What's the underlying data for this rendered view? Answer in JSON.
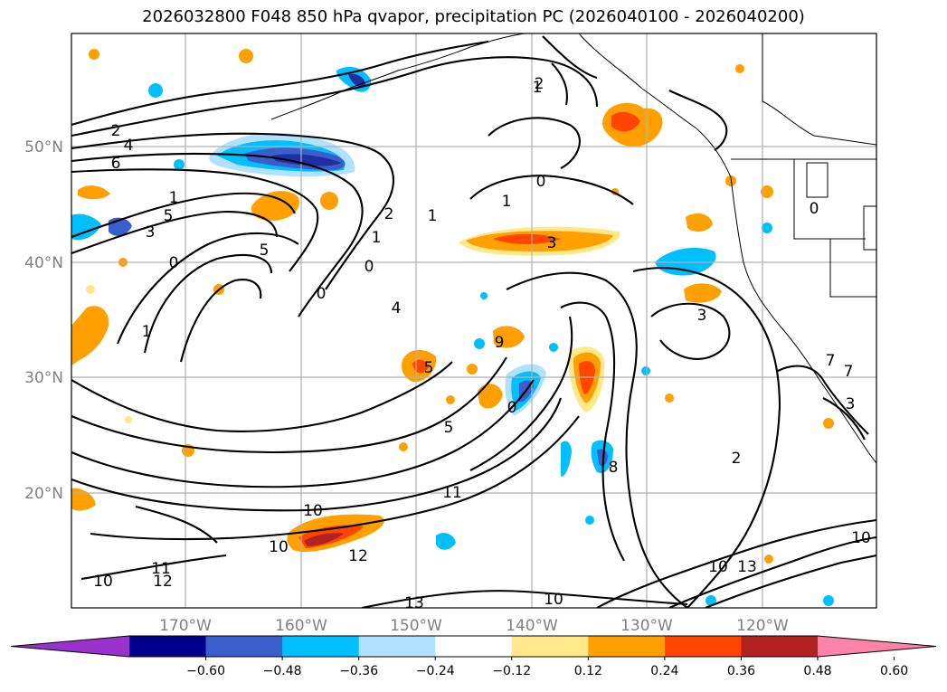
{
  "title": "2026032800 F048 850 hPa qvapor, precipitation PC (2026040100 - 2026040200)",
  "map": {
    "lat_labels": [
      "50°N",
      "40°N",
      "30°N",
      "20°N"
    ],
    "lon_labels": [
      "170°W",
      "160°W",
      "150°W",
      "140°W",
      "130°W",
      "120°W"
    ],
    "contour_labels": [
      "2",
      "4",
      "6",
      "1",
      "5",
      "3",
      "0",
      "1",
      "5",
      "2",
      "1",
      "1",
      "0",
      "1",
      "0",
      "4",
      "3",
      "1",
      "1",
      "0",
      "3",
      "5",
      "0",
      "9",
      "5",
      "8",
      "11",
      "10",
      "10",
      "12",
      "12",
      "11",
      "10",
      "13",
      "10",
      "10",
      "13",
      "10",
      "2",
      "3",
      "7",
      "0",
      "7",
      "2"
    ],
    "colors": {
      "neg_strong": "#2030a0",
      "neg_mid": "#3d5ed0",
      "neg": "#00bfff",
      "neg_light": "#ade0f7",
      "pos_light": "#ffe88a",
      "pos": "#ffa000",
      "pos_mid": "#ff4500",
      "pos_strong": "#b22222"
    }
  },
  "colorbar": {
    "ticks": [
      "−0.60",
      "−0.48",
      "−0.36",
      "−0.24",
      "−0.12",
      "0.12",
      "0.24",
      "0.36",
      "0.48",
      "0.60"
    ],
    "colors": [
      "#9932cc",
      "#00008b",
      "#3a5fcd",
      "#00bfff",
      "#b0e2ff",
      "#ffffff",
      "#ffe88a",
      "#ffa000",
      "#ff4500",
      "#b22222",
      "#ff82ab"
    ]
  }
}
